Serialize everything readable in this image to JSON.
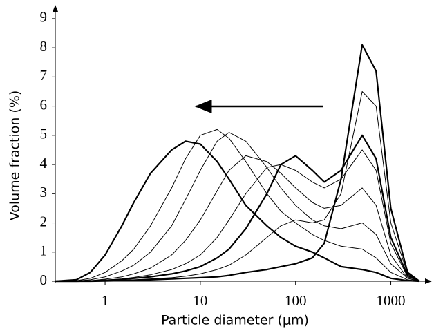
{
  "chart_data": {
    "type": "line",
    "x_label": "Particle diameter (μm)",
    "y_label": "Volume fraction (%)",
    "x_log": true,
    "x": [
      0.3,
      0.5,
      0.7,
      1,
      1.5,
      2,
      3,
      5,
      7,
      10,
      15,
      20,
      30,
      50,
      70,
      100,
      150,
      200,
      300,
      500,
      700,
      1000,
      1500,
      2000
    ],
    "series": [
      {
        "color": "#000000",
        "line_width": 2.2,
        "values": [
          0,
          0,
          0,
          0.01,
          0.02,
          0.03,
          0.05,
          0.08,
          0.1,
          0.12,
          0.15,
          0.2,
          0.3,
          0.4,
          0.5,
          0.6,
          0.8,
          1.3,
          3.5,
          8.1,
          7.2,
          2.5,
          0.3,
          0
        ]
      },
      {
        "color": "#000000",
        "line_width": 1,
        "values": [
          0,
          0,
          0,
          0.02,
          0.03,
          0.05,
          0.08,
          0.12,
          0.17,
          0.25,
          0.4,
          0.55,
          0.9,
          1.5,
          1.9,
          2.1,
          2.0,
          2.1,
          3.0,
          6.5,
          6.0,
          2.0,
          0.25,
          0
        ]
      },
      {
        "color": "#000000",
        "line_width": 2.2,
        "values": [
          0,
          0,
          0.01,
          0.03,
          0.06,
          0.1,
          0.15,
          0.25,
          0.35,
          0.5,
          0.8,
          1.1,
          1.8,
          3.0,
          4.0,
          4.3,
          3.8,
          3.4,
          3.8,
          5.0,
          4.2,
          1.5,
          0.2,
          0
        ]
      },
      {
        "color": "#000000",
        "line_width": 1,
        "values": [
          0,
          0,
          0.01,
          0.04,
          0.08,
          0.13,
          0.22,
          0.4,
          0.6,
          0.9,
          1.5,
          2.1,
          3.0,
          3.9,
          4.0,
          3.8,
          3.4,
          3.2,
          3.5,
          4.5,
          3.8,
          1.3,
          0.15,
          0
        ]
      },
      {
        "color": "#000000",
        "line_width": 1,
        "values": [
          0,
          0,
          0.02,
          0.07,
          0.15,
          0.25,
          0.45,
          0.9,
          1.4,
          2.1,
          3.1,
          3.8,
          4.3,
          4.1,
          3.7,
          3.2,
          2.7,
          2.5,
          2.6,
          3.2,
          2.6,
          0.9,
          0.1,
          0
        ]
      },
      {
        "color": "#000000",
        "line_width": 1,
        "values": [
          0,
          0.01,
          0.05,
          0.15,
          0.35,
          0.55,
          1.0,
          1.9,
          2.8,
          3.8,
          4.8,
          5.1,
          4.8,
          3.9,
          3.2,
          2.6,
          2.1,
          1.9,
          1.8,
          2.0,
          1.6,
          0.6,
          0.1,
          0
        ]
      },
      {
        "color": "#000000",
        "line_width": 1,
        "values": [
          0,
          0.02,
          0.1,
          0.3,
          0.7,
          1.1,
          1.9,
          3.2,
          4.2,
          5.0,
          5.2,
          4.9,
          4.1,
          3.0,
          2.4,
          2.0,
          1.6,
          1.4,
          1.2,
          1.1,
          0.8,
          0.3,
          0.05,
          0
        ]
      },
      {
        "color": "#000000",
        "line_width": 2.2,
        "values": [
          0,
          0.05,
          0.3,
          0.9,
          1.9,
          2.7,
          3.7,
          4.5,
          4.8,
          4.7,
          4.1,
          3.5,
          2.6,
          1.9,
          1.5,
          1.2,
          1.0,
          0.8,
          0.5,
          0.4,
          0.3,
          0.1,
          0.02,
          0
        ]
      }
    ],
    "xlim": [
      0.3,
      2700
    ],
    "xticks": [
      1,
      10,
      100,
      1000
    ],
    "ylim": [
      0,
      9.4
    ],
    "yticks": [
      0,
      1,
      2,
      3,
      4,
      5,
      6,
      7,
      8,
      9
    ]
  }
}
